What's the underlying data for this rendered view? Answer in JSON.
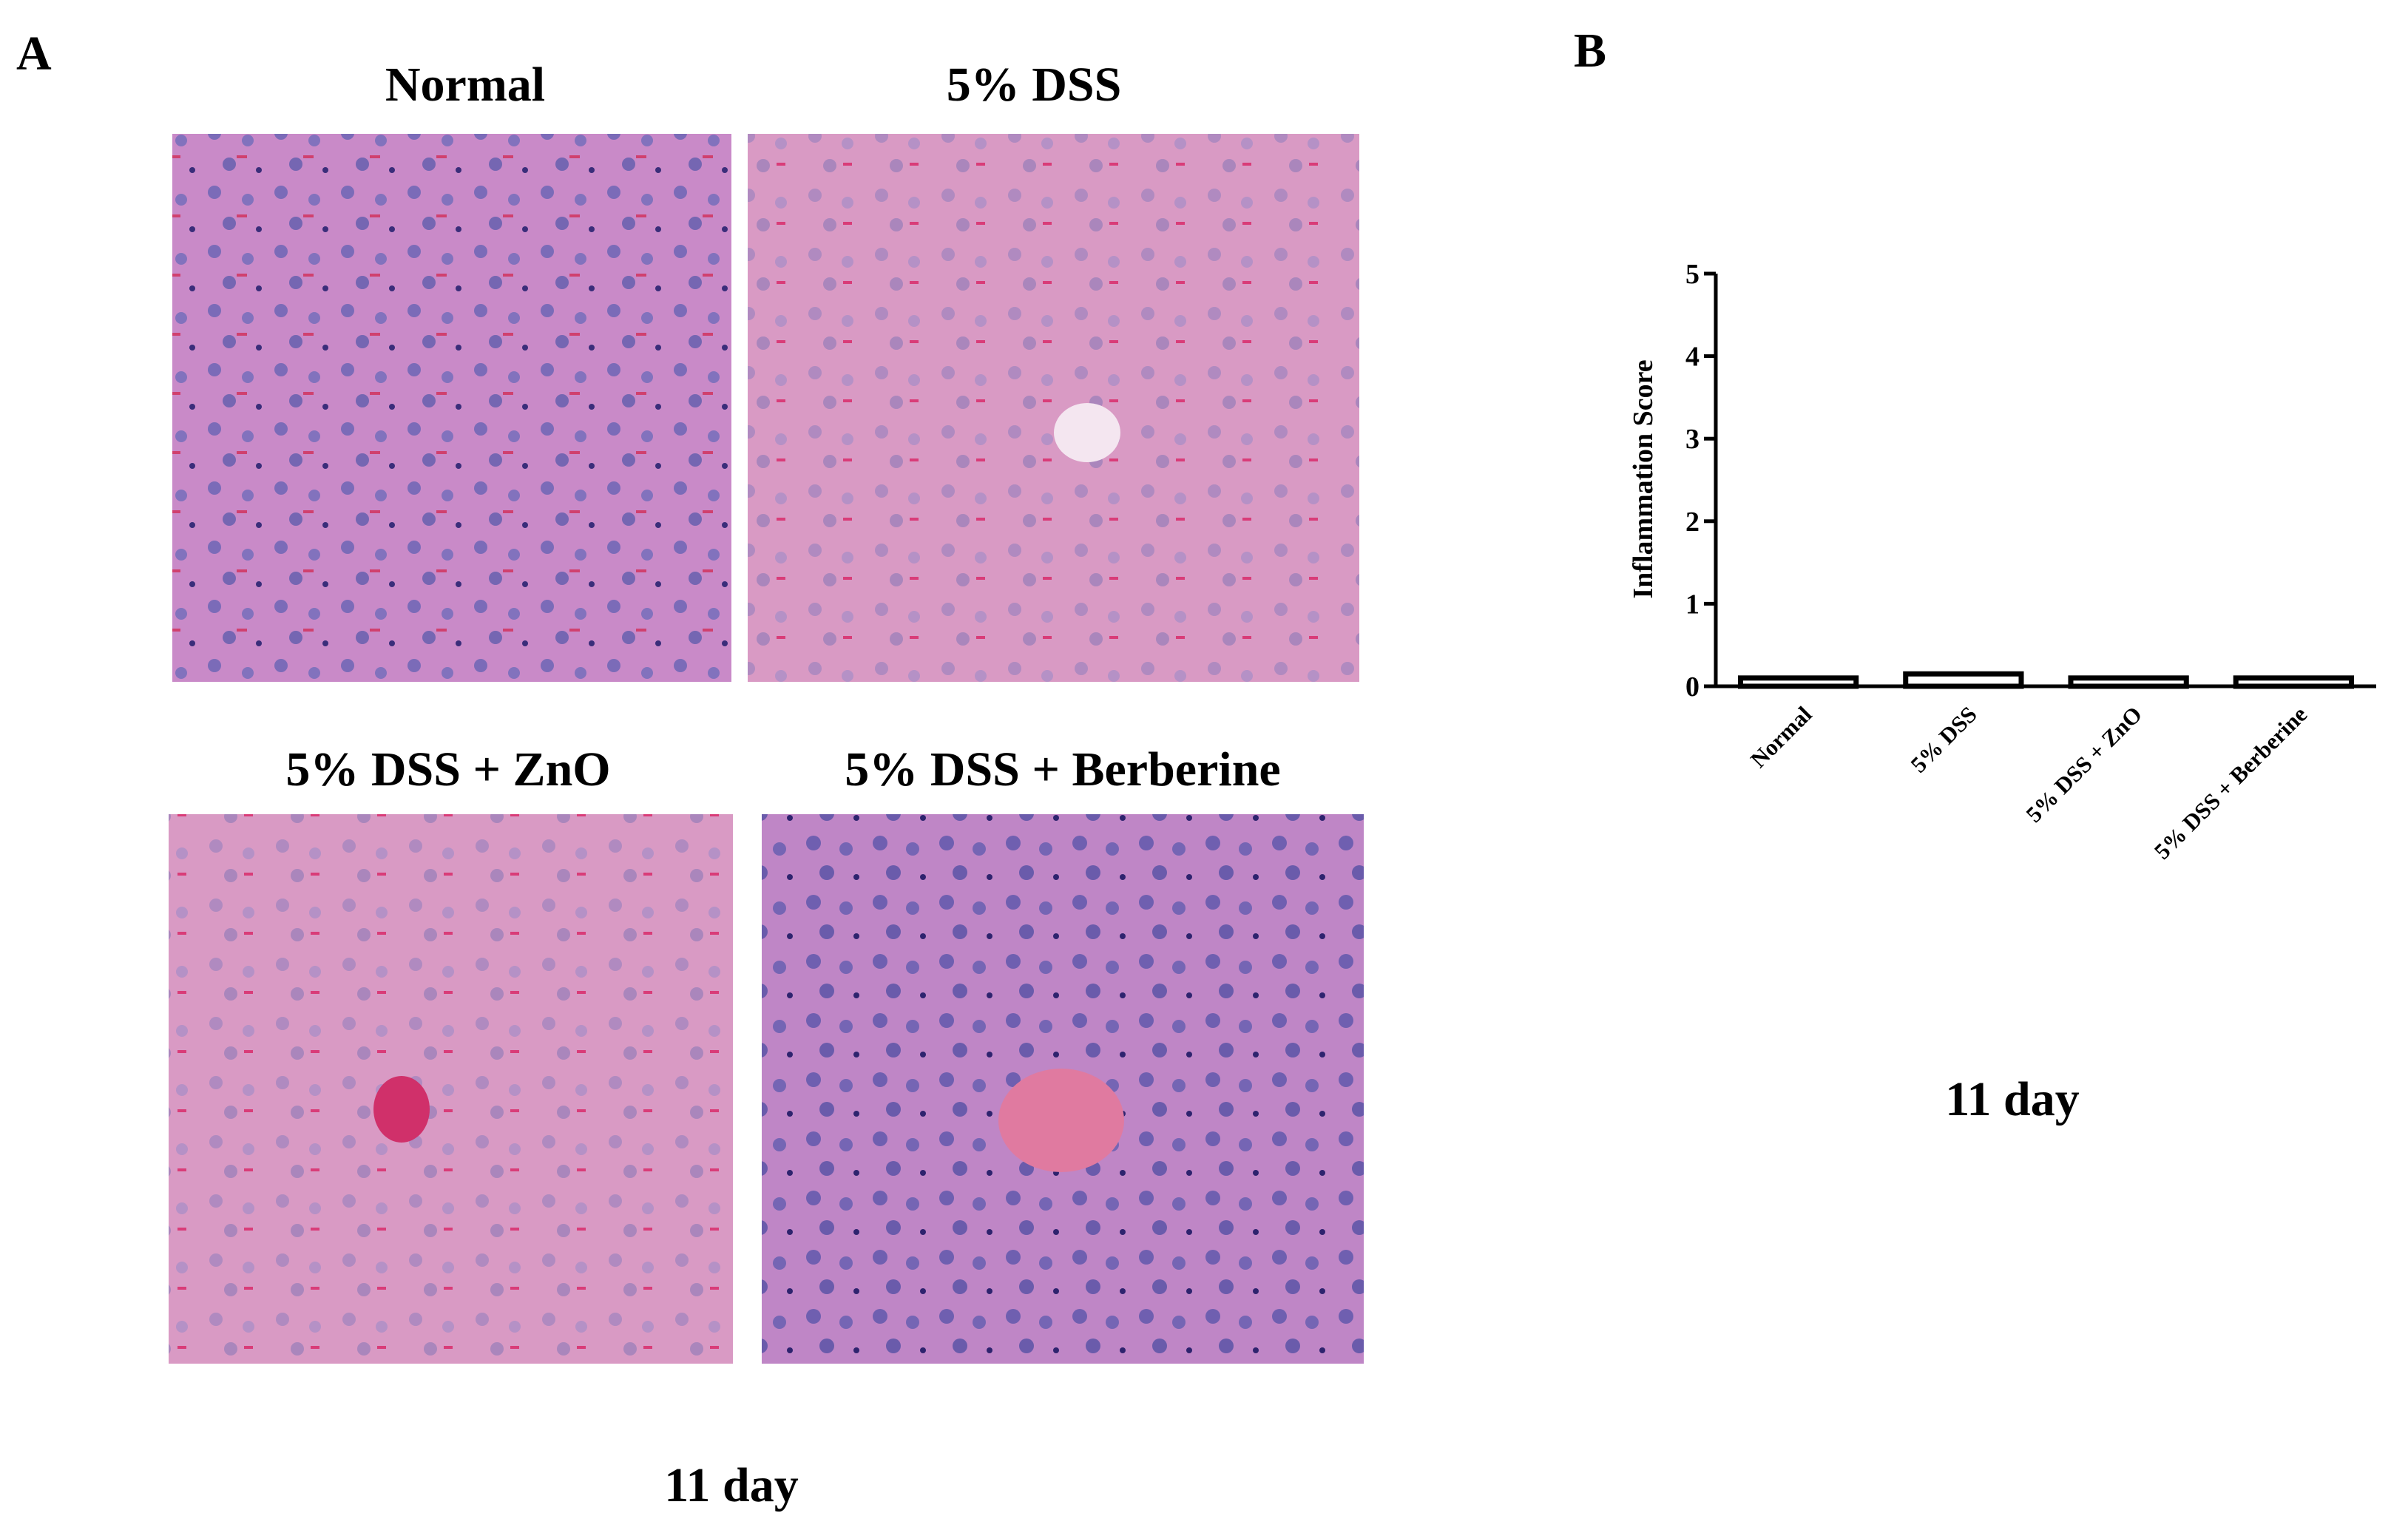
{
  "panel_a": {
    "label": "A",
    "images": [
      {
        "title": "Normal"
      },
      {
        "title": "5% DSS"
      },
      {
        "title": "5% DSS + ZnO"
      },
      {
        "title": "5% DSS + Berberine"
      }
    ],
    "caption": "11 day"
  },
  "chart_data": {
    "type": "bar",
    "label": "B",
    "ylabel": "Inflammation Score",
    "categories": [
      "Normal",
      "5% DSS",
      "5% DSS + ZnO",
      "5% DSS + Berberine"
    ],
    "values": [
      0.1,
      0.15,
      0.1,
      0.1
    ],
    "color": "#ffffff",
    "ylim": [
      0,
      5
    ],
    "yticks": [
      0,
      1,
      2,
      3,
      4,
      5
    ],
    "caption": "11 day"
  }
}
